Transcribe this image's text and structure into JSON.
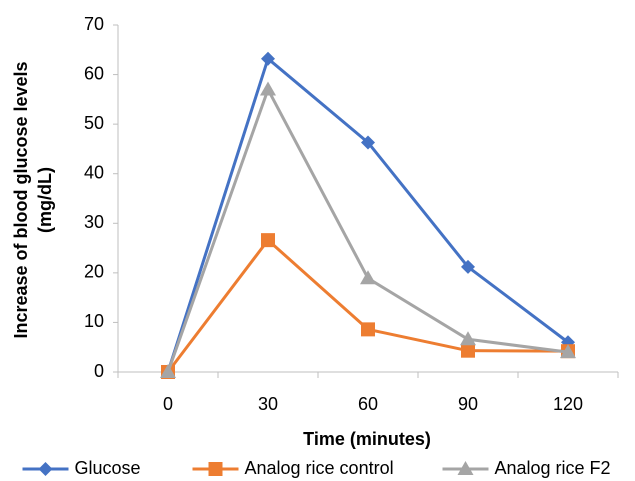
{
  "chart_data": {
    "type": "line",
    "x_label": "Time (minutes)",
    "y_label": [
      "Increase of blood glucose levels",
      "(mg/dL)"
    ],
    "categories": [
      "0",
      "30",
      "60",
      "90",
      "120"
    ],
    "series": [
      {
        "name": "Glucose",
        "color": "#4472c4",
        "marker": "diamond",
        "values": [
          0,
          63.2,
          46.3,
          21.2,
          6
        ]
      },
      {
        "name": "Analog rice control",
        "color": "#ed7d31",
        "marker": "square",
        "values": [
          0,
          26.6,
          8.6,
          4.3,
          4.2
        ]
      },
      {
        "name": "Analog rice F2",
        "color": "#a5a5a5",
        "marker": "triangle",
        "values": [
          0,
          57,
          18.9,
          6.6,
          4
        ]
      }
    ],
    "ylim": [
      0,
      70
    ],
    "yticks": [
      0,
      10,
      20,
      30,
      40,
      50,
      60,
      70
    ],
    "grid": false,
    "legend": "bottom"
  }
}
